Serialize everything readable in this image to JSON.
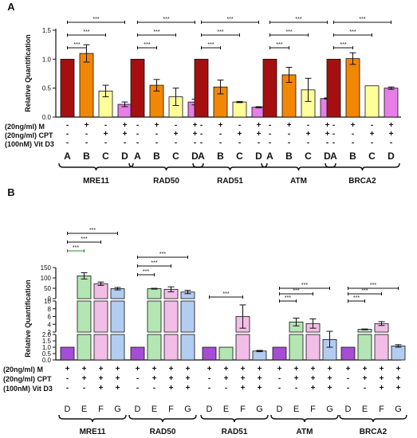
{
  "panel_labels": [
    "A",
    "B"
  ],
  "chart_data": [
    {
      "type": "bar",
      "panel": "A",
      "ylabel": "Relative Quantification",
      "ylim": [
        0,
        1.5
      ],
      "yticks": [
        "0.0",
        "0.5",
        "1.0",
        "1.5"
      ],
      "groups": [
        "MRE11",
        "RAD50",
        "RAD51",
        "ATM",
        "BRCA2"
      ],
      "bar_letters": [
        "A",
        "B",
        "C",
        "D"
      ],
      "colors": [
        "#a50f0f",
        "#f28705",
        "#ffff99",
        "#e67ee6"
      ],
      "values": [
        [
          1.0,
          1.1,
          0.45,
          0.22
        ],
        [
          1.0,
          0.55,
          0.35,
          0.26
        ],
        [
          1.0,
          0.52,
          0.26,
          0.17
        ],
        [
          1.0,
          0.73,
          0.47,
          0.32
        ],
        [
          1.0,
          1.01,
          0.54,
          0.5
        ]
      ],
      "errors": [
        [
          0,
          0.15,
          0.1,
          0.04
        ],
        [
          0,
          0.1,
          0.15,
          0.05
        ],
        [
          0,
          0.12,
          0.01,
          0.01
        ],
        [
          0,
          0.13,
          0.2,
          0.01
        ],
        [
          0,
          0.1,
          0,
          0.02
        ]
      ],
      "significance": "***",
      "treatment_rows": [
        {
          "label": "(20ng/ml) M",
          "signs": [
            "-",
            "+",
            "-",
            "+"
          ]
        },
        {
          "label": "(20ng/ml) CPT",
          "signs": [
            "-",
            "-",
            "+",
            "+"
          ]
        },
        {
          "label": "(100nM) Vit D3",
          "signs": [
            "-",
            "-",
            "-",
            "-"
          ]
        }
      ]
    },
    {
      "type": "bar",
      "panel": "B",
      "ylabel": "Relative Quantification",
      "yticks_upper": [
        "0",
        "50",
        "100",
        "150"
      ],
      "yticks_lower": [
        "0.0",
        "0.5",
        "1.0",
        "1.5",
        "2.0",
        "2",
        "4",
        "6",
        "8",
        "10"
      ],
      "groups": [
        "MRE11",
        "RAD50",
        "RAD51",
        "ATM",
        "BRCA2"
      ],
      "bar_letters": [
        "D",
        "E",
        "F",
        "G"
      ],
      "colors": [
        "#a64dd6",
        "#b3e6b3",
        "#f2bde6",
        "#b3ccf2"
      ],
      "values": [
        [
          1.0,
          110,
          72,
          48
        ],
        [
          1.0,
          48,
          45,
          32
        ],
        [
          1.0,
          1.0,
          6.0,
          0.7
        ],
        [
          1.0,
          4.6,
          4.2,
          1.6
        ],
        [
          1.0,
          2.7,
          4.2,
          1.1
        ]
      ],
      "errors": [
        [
          0,
          15,
          8,
          6
        ],
        [
          0,
          2,
          12,
          8
        ],
        [
          0,
          0,
          3.0,
          0.05
        ],
        [
          0,
          1.0,
          1.2,
          0.6
        ],
        [
          0,
          0.1,
          0.5,
          0.1
        ]
      ],
      "significance": "***",
      "treatment_rows": [
        {
          "label": "(20ng/ml) M",
          "signs": [
            "+",
            "+",
            "+",
            "+"
          ]
        },
        {
          "label": "(20ng/ml) CPT",
          "signs": [
            "-",
            "+",
            "+",
            "+"
          ]
        },
        {
          "label": "(100nM) Vit D3",
          "signs": [
            "-",
            "-",
            "+",
            "+"
          ]
        }
      ]
    }
  ]
}
